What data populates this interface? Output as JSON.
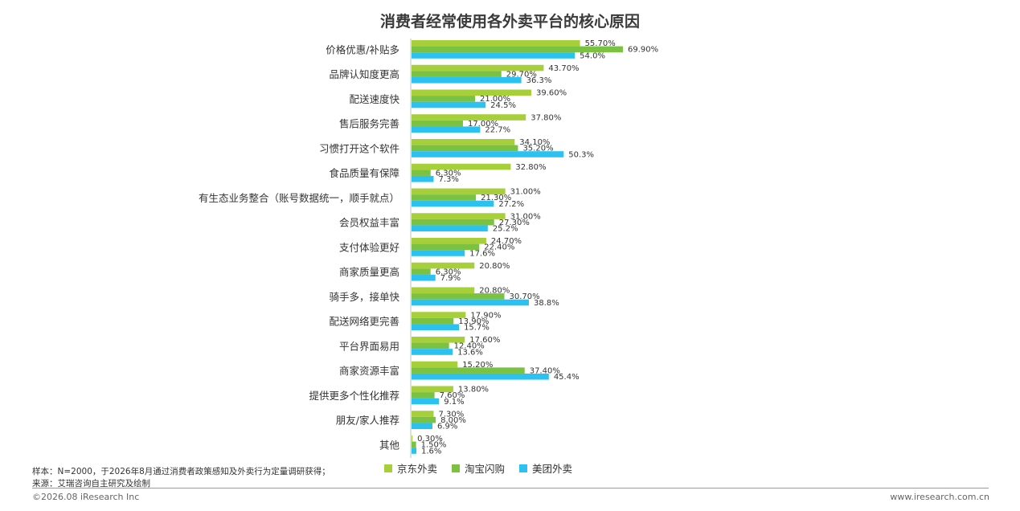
{
  "title": "消费者经常使用各外卖平台的核心原因",
  "chart_data": {
    "type": "bar",
    "orientation": "horizontal",
    "title": "消费者经常使用各外卖平台的核心原因",
    "categories": [
      "价格优惠/补贴多",
      "品牌认知度更高",
      "配送速度快",
      "售后服务完善",
      "习惯打开这个软件",
      "食品质量有保障",
      "有生态业务整合（账号数据统一，顺手就点）",
      "会员权益丰富",
      "支付体验更好",
      "商家质量更高",
      "骑手多，接单快",
      "配送网络更完善",
      "平台界面易用",
      "商家资源丰富",
      "提供更多个性化推荐",
      "朋友/家人推荐",
      "其他"
    ],
    "series": [
      {
        "name": "京东外卖",
        "color": "#a6cf3a",
        "values": [
          55.7,
          43.7,
          39.6,
          37.8,
          34.1,
          32.8,
          31.0,
          31.0,
          24.7,
          20.8,
          20.8,
          17.9,
          17.6,
          15.2,
          13.8,
          7.3,
          0.3
        ],
        "labels": [
          "55.70%",
          "43.70%",
          "39.60%",
          "37.80%",
          "34.10%",
          "32.80%",
          "31.00%",
          "31.00%",
          "24.70%",
          "20.80%",
          "20.80%",
          "17.90%",
          "17.60%",
          "15.20%",
          "13.80%",
          "7.30%",
          "0.30%"
        ]
      },
      {
        "name": "淘宝闪购",
        "color": "#7cc242",
        "values": [
          69.9,
          29.7,
          21.0,
          17.0,
          35.2,
          6.3,
          21.3,
          27.3,
          22.4,
          6.3,
          30.7,
          13.9,
          12.4,
          37.4,
          7.6,
          8.0,
          1.5
        ],
        "labels": [
          "69.90%",
          "29.70%",
          "21.00%",
          "17.00%",
          "35.20%",
          "6.30%",
          "21.30%",
          "27.30%",
          "22.40%",
          "6.30%",
          "30.70%",
          "13.90%",
          "12.40%",
          "37.40%",
          "7.60%",
          "8.00%",
          "1.50%"
        ]
      },
      {
        "name": "美团外卖",
        "color": "#2bc1f0",
        "values": [
          54.0,
          36.3,
          24.5,
          22.7,
          50.3,
          7.3,
          27.2,
          25.2,
          17.6,
          7.9,
          38.8,
          15.7,
          13.6,
          45.4,
          9.1,
          6.9,
          1.6
        ],
        "labels": [
          "54.0%",
          "36.3%",
          "24.5%",
          "22.7%",
          "50.3%",
          "7.3%",
          "27.2%",
          "25.2%",
          "17.6%",
          "7.9%",
          "38.8%",
          "15.7%",
          "13.6%",
          "45.4%",
          "9.1%",
          "6.9%",
          "1.6%"
        ]
      }
    ],
    "xlim": [
      0,
      70
    ],
    "grid": false,
    "legend_position": "bottom"
  },
  "notes": {
    "sample": "样本：N=2000，于2026年8月通过消费者政策感知及外卖行为定量调研获得；",
    "source": "来源：艾瑞咨询自主研究及绘制"
  },
  "footer": {
    "copyright": "©2026.08 iResearch Inc",
    "website": "www.iresearch.com.cn"
  }
}
